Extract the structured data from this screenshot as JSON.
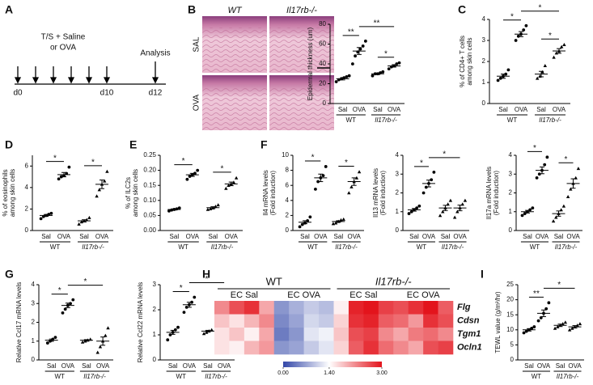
{
  "panel_letters": [
    "A",
    "B",
    "C",
    "D",
    "E",
    "F",
    "G",
    "H",
    "I"
  ],
  "timeline": {
    "treatment": [
      "T/S + Saline",
      "or OVA"
    ],
    "analysis": "Analysis",
    "days": [
      "d0",
      "d10",
      "d12"
    ]
  },
  "histology": {
    "columns": [
      "WT",
      "Il17rb-/-"
    ],
    "rows": [
      "SAL",
      "OVA"
    ]
  },
  "chart_data": [
    {
      "type": "dot",
      "ylabel": [
        "Epidermal thickness (um)"
      ],
      "ylim": [
        0,
        80
      ],
      "yticks": [
        0,
        20,
        40,
        60,
        80
      ],
      "categories": [
        "Sal",
        "OVA",
        "Sal",
        "OVA"
      ],
      "groups": [
        "WT",
        "Il17rb-/-"
      ],
      "markers": [
        "circle",
        "circle",
        "circle",
        "circle"
      ],
      "points": [
        [
          22,
          24,
          25,
          26,
          27,
          28
        ],
        [
          40,
          48,
          52,
          55,
          58,
          63
        ],
        [
          28,
          30,
          30,
          31,
          32
        ],
        [
          35,
          37,
          38,
          40,
          41
        ]
      ],
      "means": [
        25,
        53,
        30,
        38
      ],
      "sems": [
        1.2,
        3.5,
        0.8,
        1.2
      ],
      "significance": [
        {
          "groups": [
            0,
            1
          ],
          "label": "**"
        },
        {
          "groups": [
            1,
            3
          ],
          "label": "**"
        },
        {
          "groups": [
            2,
            3
          ],
          "label": "*"
        }
      ]
    },
    {
      "type": "dot",
      "ylabel": [
        "% of CD4+ T cells",
        "among skin cells"
      ],
      "ylim": [
        0,
        4
      ],
      "yticks": [
        0,
        1,
        2,
        3,
        4
      ],
      "categories": [
        "Sal",
        "OVA",
        "Sal",
        "OVA"
      ],
      "groups": [
        "WT",
        "Il17rb-/-"
      ],
      "markers": [
        "circle",
        "circle",
        "triangle",
        "triangle"
      ],
      "points": [
        [
          1.1,
          1.2,
          1.3,
          1.4,
          1.6
        ],
        [
          3.0,
          3.2,
          3.3,
          3.5,
          3.7
        ],
        [
          1.2,
          1.3,
          1.5,
          1.8
        ],
        [
          2.2,
          2.4,
          2.5,
          2.7,
          2.8
        ]
      ],
      "means": [
        1.3,
        3.3,
        1.4,
        2.5
      ],
      "sems": [
        0.1,
        0.12,
        0.13,
        0.11
      ],
      "significance": [
        {
          "groups": [
            0,
            1
          ],
          "label": "*"
        },
        {
          "groups": [
            1,
            3
          ],
          "label": "*"
        },
        {
          "groups": [
            2,
            3
          ],
          "label": "*"
        }
      ]
    },
    {
      "type": "dot",
      "ylabel": [
        "% of eosinophils",
        "among skin cells"
      ],
      "ylim": [
        0,
        7
      ],
      "yticks": [
        0,
        2,
        4,
        6
      ],
      "categories": [
        "Sal",
        "OVA",
        "Sal",
        "OVA"
      ],
      "groups": [
        "WT",
        "Il17rb-/-"
      ],
      "markers": [
        "circle",
        "circle",
        "triangle",
        "triangle"
      ],
      "points": [
        [
          1.1,
          1.3,
          1.4,
          1.5,
          1.6
        ],
        [
          4.8,
          5.0,
          5.1,
          5.3,
          5.9
        ],
        [
          0.6,
          0.8,
          0.9,
          1.0,
          1.2
        ],
        [
          3.2,
          3.8,
          4.3,
          4.6,
          5.5
        ]
      ],
      "means": [
        1.4,
        5.2,
        0.9,
        4.3
      ],
      "sems": [
        0.09,
        0.2,
        0.1,
        0.4
      ],
      "significance": [
        {
          "groups": [
            0,
            1
          ],
          "label": "*"
        },
        {
          "groups": [
            2,
            3
          ],
          "label": "*"
        }
      ]
    },
    {
      "type": "dot",
      "ylabel": [
        "% of ILC2s",
        "among skin cells"
      ],
      "ylim": [
        0,
        0.25
      ],
      "yticks": [
        {
          "value": 0,
          "label": "0.00"
        },
        {
          "value": 0.05,
          "label": "0.05"
        },
        {
          "value": 0.1,
          "label": "0.10"
        },
        {
          "value": 0.15,
          "label": "0.15"
        },
        {
          "value": 0.2,
          "label": "0.20"
        },
        {
          "value": 0.25,
          "label": "0.25"
        }
      ],
      "categories": [
        "Sal",
        "OVA",
        "Sal",
        "OVA"
      ],
      "groups": [
        "WT",
        "Il17rb-/-"
      ],
      "markers": [
        "circle",
        "circle",
        "triangle",
        "triangle"
      ],
      "points": [
        [
          0.065,
          0.068,
          0.07,
          0.072,
          0.075
        ],
        [
          0.17,
          0.18,
          0.185,
          0.19,
          0.2
        ],
        [
          0.07,
          0.072,
          0.075,
          0.08,
          0.085
        ],
        [
          0.14,
          0.15,
          0.155,
          0.16,
          0.175
        ]
      ],
      "means": [
        0.07,
        0.185,
        0.076,
        0.155
      ],
      "sems": [
        0.002,
        0.005,
        0.003,
        0.006
      ],
      "significance": [
        {
          "groups": [
            0,
            1
          ],
          "label": "*"
        },
        {
          "groups": [
            2,
            3
          ],
          "label": "*"
        }
      ]
    },
    {
      "type": "dot",
      "ylabel": [
        "Il4 mRNA levels",
        "(Fold induction)"
      ],
      "ylim": [
        0,
        10
      ],
      "yticks": [
        0,
        2,
        4,
        6,
        8,
        10
      ],
      "categories": [
        "Sal",
        "OVA",
        "Sal",
        "OVA"
      ],
      "groups": [
        "WT",
        "Il17rb-/-"
      ],
      "markers": [
        "circle",
        "circle",
        "triangle",
        "triangle"
      ],
      "points": [
        [
          0.5,
          0.8,
          1.0,
          1.3,
          1.8
        ],
        [
          5.5,
          6.5,
          7,
          7.3,
          8.5
        ],
        [
          0.9,
          1.0,
          1.2,
          1.4,
          1.5
        ],
        [
          5,
          5.8,
          6.5,
          7,
          7.8
        ]
      ],
      "means": [
        1.1,
        7,
        1.2,
        6.5
      ],
      "sems": [
        0.2,
        0.5,
        0.1,
        0.5
      ],
      "significance": [
        {
          "groups": [
            0,
            1
          ],
          "label": "*"
        },
        {
          "groups": [
            2,
            3
          ],
          "label": "*"
        }
      ]
    },
    {
      "type": "dot",
      "ylabel": [
        "Il13 mRNA levels",
        "(Fold induction)"
      ],
      "ylim": [
        0,
        4
      ],
      "yticks": [
        0,
        1,
        2,
        3,
        4
      ],
      "categories": [
        "Sal",
        "OVA",
        "Sal",
        "OVA"
      ],
      "groups": [
        "WT",
        "Il17rb-/-"
      ],
      "markers": [
        "circle",
        "circle",
        "triangle",
        "triangle"
      ],
      "points": [
        [
          0.9,
          1.0,
          1.1,
          1.2,
          1.3
        ],
        [
          2.0,
          2.3,
          2.5,
          2.7,
          3.1
        ],
        [
          0.8,
          1.0,
          1.2,
          1.4,
          1.6
        ],
        [
          0.7,
          1.0,
          1.2,
          1.4,
          1.6
        ]
      ],
      "means": [
        1.1,
        2.5,
        1.2,
        1.2
      ],
      "sems": [
        0.07,
        0.18,
        0.14,
        0.15
      ],
      "significance": [
        {
          "groups": [
            0,
            1
          ],
          "label": "*"
        },
        {
          "groups": [
            1,
            3
          ],
          "label": "*"
        }
      ]
    },
    {
      "type": "dot",
      "ylabel": [
        "Il17a mRNA levels",
        "(Fold induction)"
      ],
      "ylim": [
        0,
        4
      ],
      "yticks": [
        0,
        1,
        2,
        3,
        4
      ],
      "categories": [
        "Sal",
        "OVA",
        "Sal",
        "OVA"
      ],
      "groups": [
        "WT",
        "Il17rb-/-"
      ],
      "markers": [
        "circle",
        "circle",
        "triangle",
        "triangle"
      ],
      "points": [
        [
          0.8,
          0.9,
          1.0,
          1.1,
          1.2
        ],
        [
          2.8,
          3.0,
          3.2,
          3.5,
          3.9
        ],
        [
          0.5,
          0.7,
          0.9,
          1.1,
          1.3
        ],
        [
          1.8,
          2.2,
          2.5,
          2.8,
          3.3
        ]
      ],
      "means": [
        1.0,
        3.2,
        0.9,
        2.5
      ],
      "sems": [
        0.07,
        0.18,
        0.14,
        0.25
      ],
      "significance": [
        {
          "groups": [
            0,
            1
          ],
          "label": "*"
        },
        {
          "groups": [
            2,
            3
          ],
          "label": "*"
        }
      ]
    },
    {
      "type": "dot",
      "ylabel": [
        "Relative Ccl17 mRNA levels"
      ],
      "ylim": [
        0,
        4
      ],
      "yticks": [
        0,
        1,
        2,
        3,
        4
      ],
      "categories": [
        "Sal",
        "OVA",
        "Sal",
        "OVA"
      ],
      "groups": [
        "WT",
        "Il17rb-/-"
      ],
      "markers": [
        "circle",
        "circle",
        "triangle",
        "triangle"
      ],
      "points": [
        [
          0.9,
          1.0,
          1.1,
          1.2
        ],
        [
          2.5,
          2.7,
          2.9,
          3.0,
          3.2
        ],
        [
          0.95,
          1.0,
          1.05,
          1.1
        ],
        [
          0.4,
          0.7,
          1.0,
          1.3,
          1.7
        ]
      ],
      "means": [
        1.05,
        2.9,
        1.05,
        1.0
      ],
      "sems": [
        0.06,
        0.12,
        0.03,
        0.22
      ],
      "significance": [
        {
          "groups": [
            0,
            1
          ],
          "label": "*"
        },
        {
          "groups": [
            1,
            3
          ],
          "label": "*"
        }
      ]
    },
    {
      "type": "dot",
      "ylabel": [
        "Relative Ccl22 mRNA levels"
      ],
      "ylim": [
        0,
        3
      ],
      "yticks": [
        0,
        1,
        2,
        3
      ],
      "categories": [
        "Sal",
        "OVA",
        "Sal",
        "OVA"
      ],
      "groups": [
        "WT",
        "Il17rb-/-"
      ],
      "markers": [
        "circle",
        "circle",
        "triangle",
        "triangle"
      ],
      "points": [
        [
          0.8,
          1.0,
          1.1,
          1.2,
          1.3
        ],
        [
          1.9,
          2.1,
          2.2,
          2.3,
          2.5
        ],
        [
          1.05,
          1.1,
          1.15,
          1.2
        ],
        [
          0.7,
          1.0,
          1.15,
          1.3,
          1.5
        ]
      ],
      "means": [
        1.1,
        2.2,
        1.15,
        1.15
      ],
      "sems": [
        0.08,
        0.1,
        0.03,
        0.13
      ],
      "significance": [
        {
          "groups": [
            0,
            1
          ],
          "label": "*"
        },
        {
          "groups": [
            1,
            3
          ],
          "label": "*"
        }
      ]
    },
    {
      "type": "dot",
      "ylabel": [
        "TEWL value (g/m²/hr)"
      ],
      "ylim": [
        0,
        25
      ],
      "yticks": [
        0,
        5,
        10,
        15,
        20,
        25
      ],
      "categories": [
        "Sal",
        "OVA",
        "Sal",
        "OVA"
      ],
      "groups": [
        "WT",
        "Il17rb-/-"
      ],
      "markers": [
        "circle",
        "circle",
        "triangle",
        "triangle"
      ],
      "points": [
        [
          9,
          9.5,
          10,
          10.5,
          11
        ],
        [
          13,
          14,
          15.5,
          17,
          19
        ],
        [
          10.5,
          11,
          11.5,
          12,
          12.5
        ],
        [
          10,
          10.5,
          11,
          11.5,
          12
        ]
      ],
      "means": [
        10,
        15.5,
        11.5,
        11
      ],
      "sems": [
        0.4,
        1.1,
        0.4,
        0.4
      ],
      "significance": [
        {
          "groups": [
            0,
            1
          ],
          "label": "**"
        },
        {
          "groups": [
            1,
            3
          ],
          "label": "*"
        }
      ]
    },
    {
      "type": "heatmap",
      "groups": [
        "WT",
        "Il17rb-/-"
      ],
      "conditions": [
        "EC Sal",
        "EC OVA",
        "EC Sal",
        "EC OVA"
      ],
      "rows": [
        "Flg",
        "Cdsn",
        "Tgm1",
        "Ocln1"
      ],
      "values": [
        [
          2.2,
          2.6,
          2.8,
          2.0,
          0.6,
          0.8,
          1.0,
          0.9,
          1.5,
          2.9,
          3.0,
          2.7,
          2.6,
          2.8,
          3.0,
          2.5
        ],
        [
          1.8,
          1.6,
          1.9,
          2.2,
          0.5,
          0.7,
          1.1,
          1.0,
          1.7,
          2.8,
          2.9,
          2.5,
          2.4,
          2.1,
          2.8,
          2.6
        ],
        [
          1.6,
          1.8,
          1.5,
          2.0,
          0.4,
          0.6,
          1.2,
          1.3,
          1.8,
          2.6,
          2.7,
          2.2,
          2.0,
          2.3,
          2.4,
          2.2
        ],
        [
          1.6,
          1.5,
          1.9,
          2.1,
          0.6,
          0.7,
          1.0,
          1.2,
          1.7,
          2.5,
          2.8,
          2.4,
          2.2,
          2.0,
          2.6,
          2.7
        ]
      ],
      "colors": [
        "#3347a8",
        "#ffffff",
        "#e3141c"
      ],
      "cticks": [
        {
          "value": 0,
          "label": "0.00"
        },
        {
          "value": 1.4,
          "label": "1.40"
        },
        {
          "value": 3,
          "label": "3.00"
        }
      ]
    }
  ]
}
